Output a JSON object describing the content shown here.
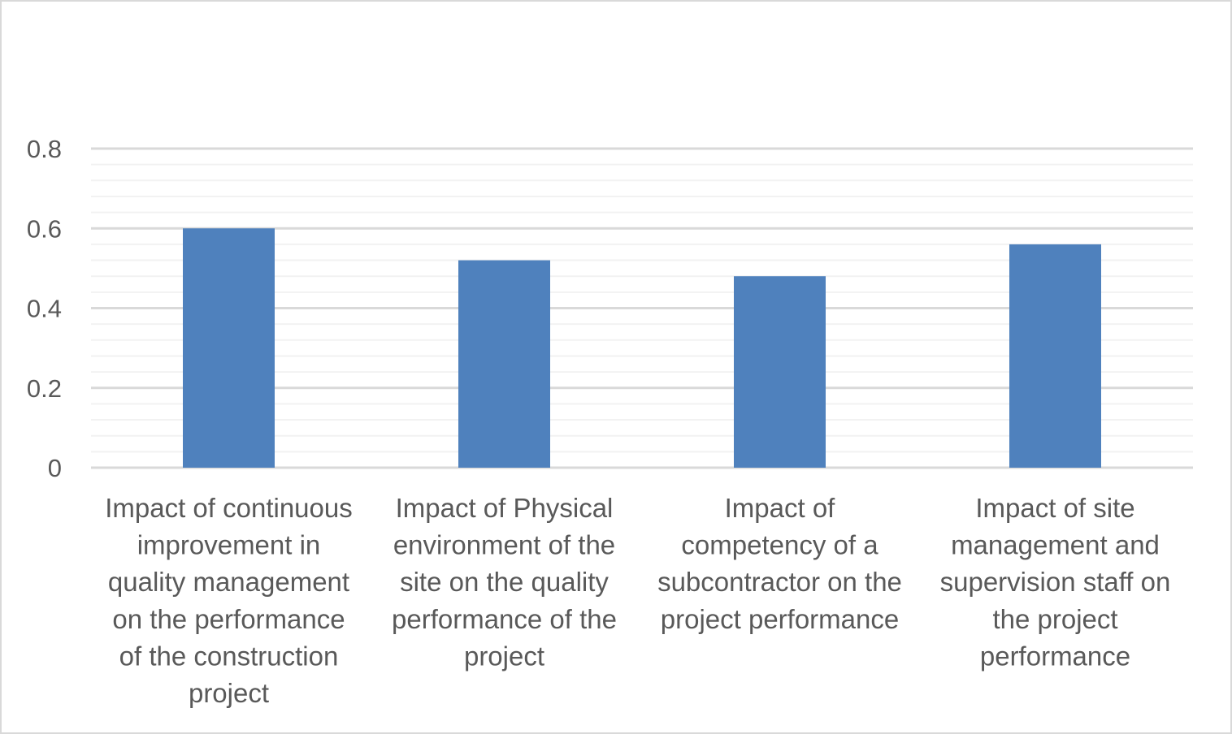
{
  "chart_data": {
    "type": "bar",
    "categories": [
      [
        "Impact of continuous",
        "improvement in",
        "quality management",
        "on the performance",
        "of the construction",
        "project"
      ],
      [
        "Impact of Physical",
        "environment of the",
        "site on the quality",
        "performance of the",
        "project"
      ],
      [
        "Impact of",
        "competency of a",
        "subcontractor on the",
        "project performance"
      ],
      [
        "Impact of site",
        "management and",
        "supervision staff on",
        "the project",
        "performance"
      ]
    ],
    "values": [
      0.6,
      0.52,
      0.48,
      0.56
    ],
    "title": "",
    "xlabel": "",
    "ylabel": "",
    "ylim": [
      0,
      0.8
    ],
    "yticks": [
      "0",
      "0.2",
      "0.4",
      "0.6",
      "0.8"
    ],
    "major_grid": true,
    "minor_grid": true,
    "legend": "none",
    "bar_color": "#4f81bd",
    "grid_color": "#d9d9d9",
    "minor_grid_color": "#f2f2f2",
    "text_color": "#595959"
  }
}
